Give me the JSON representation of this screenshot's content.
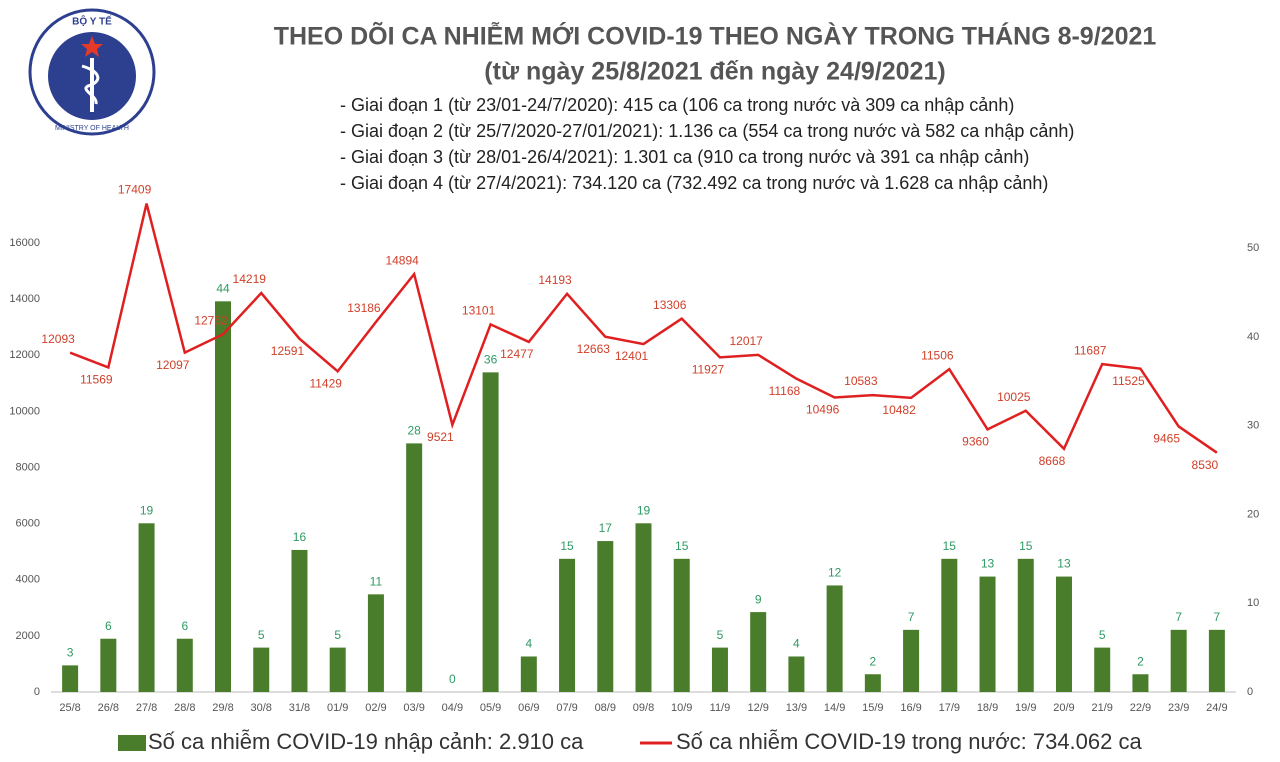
{
  "chart_data": {
    "type": "combo",
    "logo": {
      "top": "BỘ Y TẾ",
      "bottom": "MINISTRY OF HEALTH"
    },
    "title": "THEO DÕI CA NHIỄM MỚI COVID-19 THEO NGÀY TRONG THÁNG 8-9/2021",
    "subtitle": "(từ ngày 25/8/2021 đến ngày 24/9/2021)",
    "annotations": [
      "- Giai đoạn 1 (từ 23/01-24/7/2020): 415 ca (106 ca trong nước và 309 ca nhập cảnh)",
      "- Giai đoạn 2 (từ 25/7/2020-27/01/2021): 1.136 ca (554 ca trong nước và 582 ca nhập cảnh)",
      "- Giai đoạn 3 (từ 28/01-26/4/2021): 1.301 ca (910 ca trong nước và 391 ca nhập cảnh)",
      "- Giai đoạn 4 (từ 27/4/2021): 734.120 ca (732.492 ca trong nước và 1.628 ca nhập cảnh)"
    ],
    "categories": [
      "25/8",
      "26/8",
      "27/8",
      "28/8",
      "29/8",
      "30/8",
      "31/8",
      "01/9",
      "02/9",
      "03/9",
      "04/9",
      "05/9",
      "06/9",
      "07/9",
      "08/9",
      "09/8",
      "10/9",
      "11/9",
      "12/9",
      "13/9",
      "14/9",
      "15/9",
      "16/9",
      "17/9",
      "18/9",
      "19/9",
      "20/9",
      "21/9",
      "22/9",
      "23/9",
      "24/9"
    ],
    "series": [
      {
        "name": "Số ca nhiễm COVID-19 nhập cảnh: 2.910 ca",
        "type": "bar",
        "axis": "y2",
        "color": "#4a7d2b",
        "label_color": "#2f9a63",
        "values": [
          3,
          6,
          19,
          6,
          44,
          5,
          16,
          5,
          11,
          28,
          0,
          36,
          4,
          15,
          17,
          19,
          15,
          5,
          9,
          4,
          12,
          2,
          7,
          15,
          13,
          15,
          13,
          5,
          2,
          7,
          7
        ]
      },
      {
        "name": "Số ca nhiễm COVID-19 trong nước: 734.062 ca",
        "type": "line",
        "axis": "y",
        "color": "#e02020",
        "label_color": "#d0402a",
        "values": [
          12093,
          11569,
          17409,
          12097,
          12752,
          14219,
          12591,
          11429,
          13186,
          14894,
          9521,
          13101,
          12477,
          14193,
          12663,
          12401,
          13306,
          11927,
          12017,
          11168,
          10496,
          10583,
          10482,
          11506,
          9360,
          10025,
          8668,
          11687,
          11525,
          9465,
          8530
        ]
      }
    ],
    "ylim": [
      0,
      17500
    ],
    "yticks": [
      0,
      2000,
      4000,
      6000,
      8000,
      10000,
      12000,
      14000,
      16000
    ],
    "y2lim": [
      0,
      55.3
    ],
    "y2ticks": [
      0,
      10,
      20,
      30,
      40,
      50
    ],
    "legend": "bottom"
  }
}
